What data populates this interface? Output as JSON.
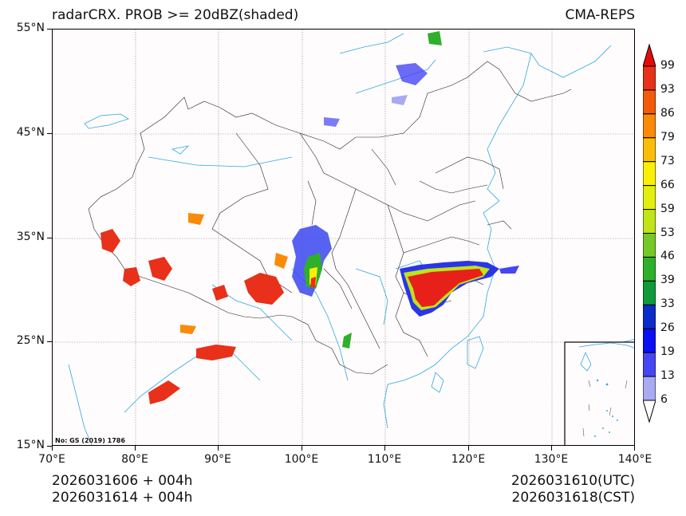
{
  "header": {
    "title": "radarCRX. PROB >= 20dBZ(shaded)",
    "source": "CMA-REPS"
  },
  "map": {
    "projection_note": "No: GS (2019) 1786",
    "lat_labels": [
      "55°N",
      "45°N",
      "35°N",
      "25°N",
      "15°N"
    ],
    "lon_labels": [
      "70°E",
      "80°E",
      "90°E",
      "100°E",
      "110°E",
      "120°E",
      "130°E",
      "140°E"
    ],
    "extent": {
      "lon": [
        70,
        140
      ],
      "lat": [
        15,
        55
      ]
    },
    "inset": "South China Sea islands"
  },
  "footer": {
    "init_utc": "2026031606  +  004h",
    "init_cst": "2026031614  +  004h",
    "valid_utc": "2026031610(UTC)",
    "valid_cst": "2026031618(CST)"
  },
  "colorbar": {
    "labels": [
      "99",
      "93",
      "86",
      "79",
      "73",
      "66",
      "59",
      "53",
      "46",
      "39",
      "33",
      "26",
      "19",
      "13",
      "6"
    ],
    "colors": [
      "#e8301a",
      "#f25a0c",
      "#fa8a08",
      "#fcbd0a",
      "#fcef06",
      "#e2ef0c",
      "#bfe418",
      "#76c828",
      "#2eb02a",
      "#109a3a",
      "#0a2cc8",
      "#0a10f4",
      "#4646f4",
      "#a8aaf4"
    ],
    "over_color": "#e80a0a",
    "under_color": "#ffffff"
  }
}
